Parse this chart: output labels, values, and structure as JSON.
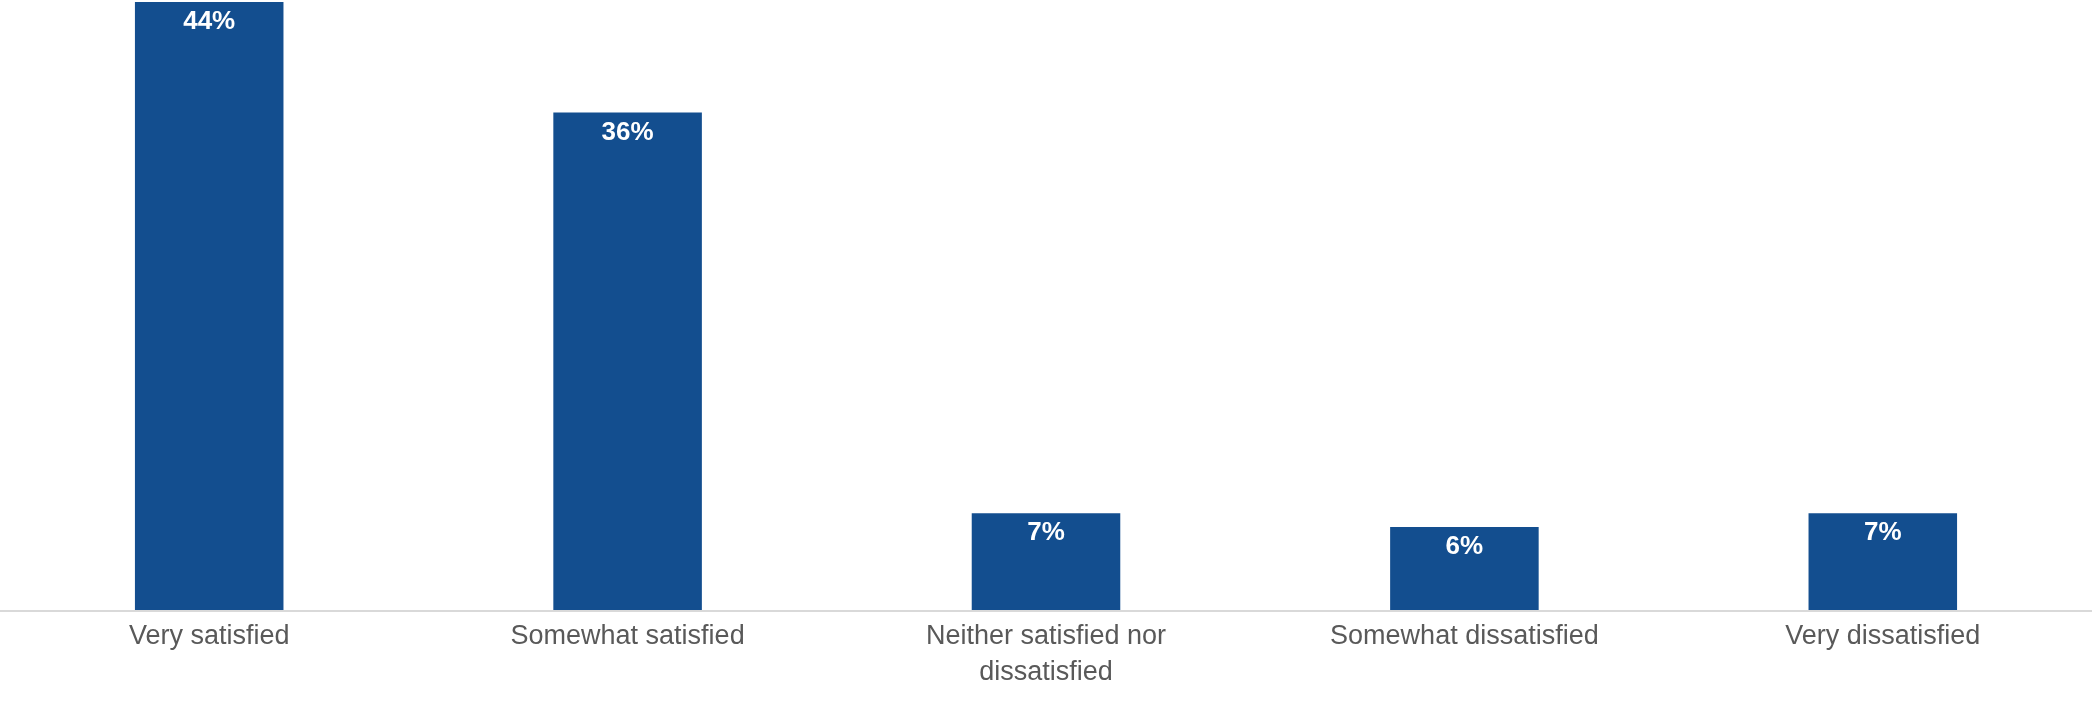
{
  "chart_data": {
    "type": "bar",
    "categories": [
      "Very satisfied",
      "Somewhat satisfied",
      "Neither satisfied nor dissatisfied",
      "Somewhat dissatisfied",
      "Very dissatisfied"
    ],
    "values": [
      44,
      36,
      7,
      6,
      7
    ],
    "value_labels": [
      "44%",
      "36%",
      "7%",
      "6%",
      "7%"
    ],
    "color": "#134e8f"
  }
}
